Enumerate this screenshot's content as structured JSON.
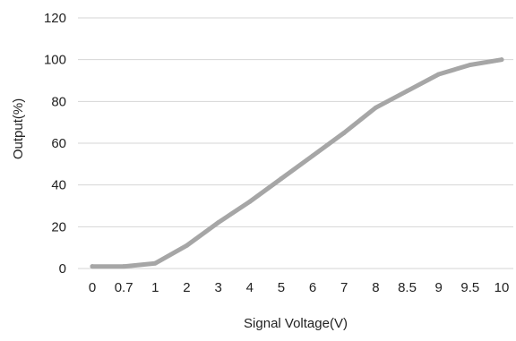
{
  "chart_data": {
    "type": "line",
    "title": "",
    "xlabel": "Signal Voltage(V)",
    "ylabel": "Output(%)",
    "categories": [
      "0",
      "0.7",
      "1",
      "2",
      "3",
      "4",
      "5",
      "6",
      "7",
      "8",
      "8.5",
      "9",
      "9.5",
      "10"
    ],
    "series": [
      {
        "values": [
          1,
          1,
          2.5,
          11,
          22,
          32,
          43,
          54,
          65,
          77,
          85,
          93,
          97.5,
          100
        ]
      }
    ],
    "yticks": [
      "0",
      "20",
      "40",
      "60",
      "80",
      "100",
      "120"
    ],
    "ylim": [
      0,
      120
    ],
    "grid": "horizontal",
    "legend": "none",
    "colors": {
      "series": "#a6a6a6",
      "grid": "#d6d6d6",
      "text": "#222222"
    }
  }
}
